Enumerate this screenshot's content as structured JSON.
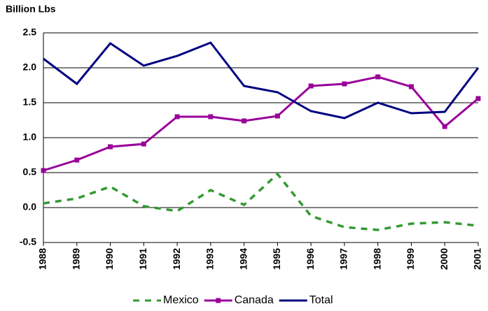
{
  "chart_data": {
    "type": "line",
    "y_label": "Billion Lbs",
    "categories": [
      "1988",
      "1989",
      "1990",
      "1991",
      "1992",
      "1993",
      "1994",
      "1995",
      "1996",
      "1997",
      "1998",
      "1999",
      "2000",
      "2001"
    ],
    "series": [
      {
        "name": "Mexico",
        "color": "#339933",
        "style": "dashed",
        "marker": "none",
        "values": [
          0.06,
          0.13,
          0.3,
          0.02,
          -0.05,
          0.25,
          0.04,
          0.48,
          -0.12,
          -0.28,
          -0.32,
          -0.23,
          -0.21,
          -0.26
        ]
      },
      {
        "name": "Canada",
        "color": "#990099",
        "style": "solid",
        "marker": "square",
        "values": [
          0.53,
          0.68,
          0.87,
          0.91,
          1.3,
          1.3,
          1.24,
          1.31,
          1.74,
          1.77,
          1.87,
          1.73,
          1.16,
          1.56
        ]
      },
      {
        "name": "Total",
        "color": "#000080",
        "style": "solid",
        "marker": "none",
        "values": [
          2.13,
          1.77,
          2.35,
          2.03,
          2.17,
          2.36,
          1.74,
          1.65,
          1.38,
          1.28,
          1.5,
          1.35,
          1.37,
          2.0
        ]
      }
    ],
    "ylim": [
      -0.5,
      2.5
    ],
    "yticks": [
      2.5,
      {
        "value": 2,
        "label": "2.0"
      },
      1.5,
      {
        "value": 1,
        "label": "1.0"
      },
      0.5,
      {
        "value": 0,
        "label": "0.0"
      },
      -0.5
    ],
    "grid": true,
    "legend": "bottom"
  }
}
